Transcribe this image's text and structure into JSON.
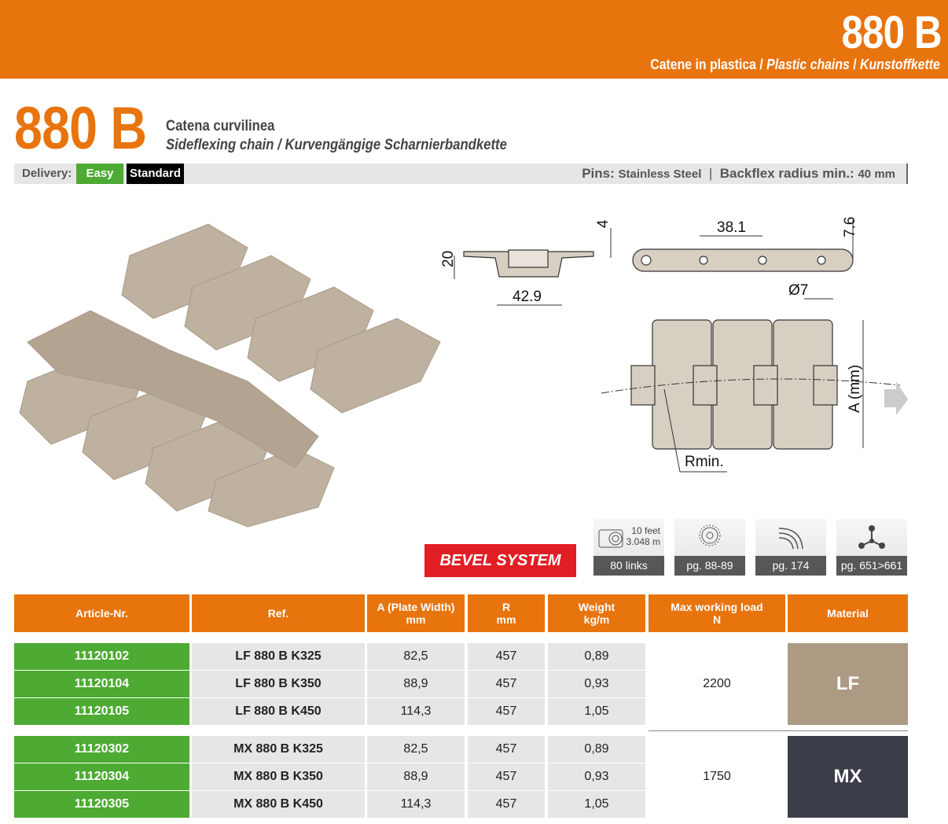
{
  "header": {
    "code": "880 B",
    "subtitle_it": "Catene in plastica",
    "subtitle_en": "Plastic chains",
    "subtitle_de": "Kunstoffkette",
    "sep": " / "
  },
  "product": {
    "code": "880 B",
    "name_it": "Catena curvilinea",
    "name_en": "Sideflexing chain",
    "name_de": "Kurvengängige Scharnierbandkette"
  },
  "delivery": {
    "label": "Delivery:",
    "easy": "Easy",
    "standard": "Standard",
    "colors": {
      "easy": "#4DAA32",
      "standard": "#000000"
    }
  },
  "specs": {
    "pins_label": "Pins:",
    "pins_value": "Stainless Steel",
    "backflex_label": "Backflex radius min.:",
    "backflex_value": "40 mm"
  },
  "diagram": {
    "dim_20": "20",
    "dim_4": "4",
    "dim_42_9": "42.9",
    "dim_38_1": "38.1",
    "dim_7_6": "7.6",
    "dim_d7": "Ø7",
    "dim_a": "A (mm)",
    "rmin": "Rmin."
  },
  "bevel": "BEVEL SYSTEM",
  "icons": [
    {
      "icon": "coil-icon",
      "line1": "10 feet",
      "line2": "3.048 m",
      "label": "80 links"
    },
    {
      "icon": "sprocket-icon",
      "label": "pg. 88-89"
    },
    {
      "icon": "curve-track-icon",
      "label": "pg. 174"
    },
    {
      "icon": "molecule-icon",
      "label": "pg. 651>661"
    }
  ],
  "table": {
    "headers": [
      {
        "l1": "Article-Nr.",
        "l2": ""
      },
      {
        "l1": "Ref.",
        "l2": ""
      },
      {
        "l1": "A (Plate Width)",
        "l2": "mm"
      },
      {
        "l1": "R",
        "l2": "mm"
      },
      {
        "l1": "Weight",
        "l2": "kg/m"
      },
      {
        "l1": "Max working load",
        "l2": "N"
      },
      {
        "l1": "Material",
        "l2": ""
      }
    ],
    "groups": [
      {
        "load": "2200",
        "material": "LF",
        "material_color": "#AD9A83",
        "rows": [
          {
            "article": "11120102",
            "ref": "LF 880 B K325",
            "a": "82,5",
            "r": "457",
            "weight": "0,89"
          },
          {
            "article": "11120104",
            "ref": "LF 880 B K350",
            "a": "88,9",
            "r": "457",
            "weight": "0,93"
          },
          {
            "article": "11120105",
            "ref": "LF 880 B K450",
            "a": "114,3",
            "r": "457",
            "weight": "1,05"
          }
        ]
      },
      {
        "load": "1750",
        "material": "MX",
        "material_color": "#3B3D48",
        "rows": [
          {
            "article": "11120302",
            "ref": "MX 880 B K325",
            "a": "82,5",
            "r": "457",
            "weight": "0,89"
          },
          {
            "article": "11120304",
            "ref": "MX 880 B K350",
            "a": "88,9",
            "r": "457",
            "weight": "0,93"
          },
          {
            "article": "11120305",
            "ref": "MX 880 B K450",
            "a": "114,3",
            "r": "457",
            "weight": "1,05"
          }
        ]
      }
    ]
  },
  "colors": {
    "accent": "#E8740E",
    "chain": "#BFB1A0"
  }
}
